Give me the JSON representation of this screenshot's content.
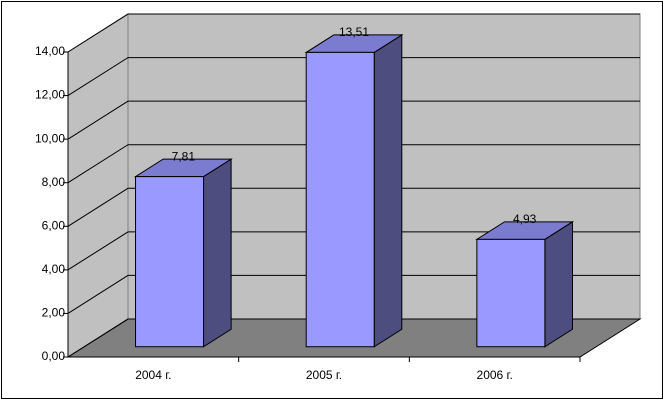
{
  "chart_data": {
    "type": "bar3d",
    "categories": [
      "2004 г.",
      "2005 г.",
      "2006 г."
    ],
    "values": [
      7.81,
      13.51,
      4.93
    ],
    "value_labels": [
      "7,81",
      "13,51",
      "4,93"
    ],
    "color": "#9999ff",
    "ylim": [
      0,
      14
    ],
    "yticks": [
      {
        "value": 0,
        "label": "0,00"
      },
      {
        "value": 2,
        "label": "2,00"
      },
      {
        "value": 4,
        "label": "4,00"
      },
      {
        "value": 6,
        "label": "6,00"
      },
      {
        "value": 8,
        "label": "8,00"
      },
      {
        "value": 10,
        "label": "10,00"
      },
      {
        "value": 12,
        "label": "12,00"
      },
      {
        "value": 14,
        "label": "14,00"
      }
    ],
    "grid": true
  }
}
